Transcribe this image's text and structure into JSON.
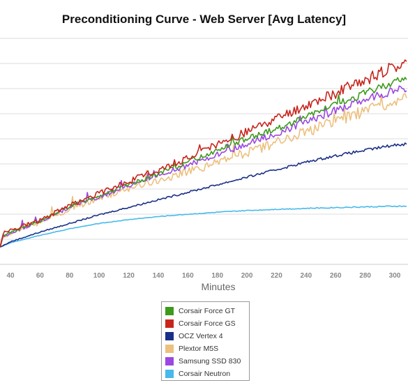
{
  "chart_data": {
    "type": "line",
    "title": "Preconditioning Curve - Web Server [Avg Latency]",
    "xlabel": "Minutes",
    "ylabel": "",
    "xlim": [
      33,
      308
    ],
    "ylim": [
      0,
      10.5
    ],
    "y_tick_labels_visible": false,
    "grid": "horizontal",
    "legend_position": "bottom-center",
    "x_ticks": [
      40,
      60,
      80,
      100,
      120,
      140,
      160,
      180,
      200,
      220,
      240,
      260,
      280,
      300
    ],
    "series": [
      {
        "name": "Corsair Force GT",
        "color": "#3c9a1c",
        "x": [
          33,
          35,
          40,
          60,
          80,
          100,
          120,
          140,
          160,
          180,
          200,
          220,
          240,
          260,
          280,
          300,
          308
        ],
        "y": [
          0.8,
          1.35,
          1.5,
          2.0,
          2.7,
          3.2,
          3.7,
          4.2,
          4.75,
          5.3,
          5.85,
          6.3,
          6.85,
          7.4,
          7.95,
          8.5,
          8.6
        ],
        "noise": 0.13
      },
      {
        "name": "Corsair Force GS",
        "color": "#c8251d",
        "x": [
          33,
          35,
          40,
          60,
          80,
          100,
          120,
          140,
          160,
          180,
          200,
          220,
          240,
          260,
          280,
          300,
          308
        ],
        "y": [
          0.8,
          1.45,
          1.6,
          2.05,
          2.75,
          3.3,
          3.85,
          4.4,
          4.95,
          5.55,
          6.15,
          6.75,
          7.35,
          7.95,
          8.55,
          9.2,
          9.4
        ],
        "noise": 0.2
      },
      {
        "name": "OCZ Vertex 4",
        "color": "#1a2f86",
        "x": [
          33,
          40,
          60,
          80,
          100,
          120,
          140,
          160,
          180,
          200,
          220,
          240,
          260,
          280,
          300,
          308
        ],
        "y": [
          0.8,
          1.05,
          1.5,
          1.9,
          2.3,
          2.65,
          3.0,
          3.35,
          3.7,
          4.05,
          4.4,
          4.75,
          5.05,
          5.3,
          5.55,
          5.6
        ],
        "noise": 0.05
      },
      {
        "name": "Plextor M5S",
        "color": "#ecc07e",
        "x": [
          33,
          35,
          40,
          60,
          80,
          100,
          120,
          140,
          160,
          180,
          200,
          220,
          240,
          260,
          280,
          300,
          308
        ],
        "y": [
          0.8,
          1.25,
          1.45,
          1.95,
          2.55,
          3.05,
          3.5,
          3.9,
          4.3,
          4.75,
          5.2,
          5.65,
          6.15,
          6.65,
          7.15,
          7.6,
          7.7
        ],
        "noise": 0.22
      },
      {
        "name": "Samsung SSD 830",
        "color": "#9b48e0",
        "x": [
          33,
          35,
          40,
          60,
          80,
          100,
          120,
          140,
          160,
          180,
          200,
          220,
          240,
          260,
          280,
          300,
          308
        ],
        "y": [
          0.8,
          1.3,
          1.45,
          2.0,
          2.65,
          3.15,
          3.65,
          4.15,
          4.6,
          5.1,
          5.6,
          6.1,
          6.6,
          7.15,
          7.65,
          8.1,
          8.2
        ],
        "noise": 0.15
      },
      {
        "name": "Corsair Neutron",
        "color": "#47b9ec",
        "x": [
          33,
          40,
          60,
          80,
          100,
          120,
          140,
          160,
          180,
          200,
          220,
          240,
          260,
          280,
          300,
          308
        ],
        "y": [
          0.8,
          1.0,
          1.35,
          1.65,
          1.9,
          2.08,
          2.22,
          2.33,
          2.42,
          2.5,
          2.56,
          2.6,
          2.64,
          2.67,
          2.7,
          2.7
        ],
        "noise": 0.02
      }
    ]
  }
}
